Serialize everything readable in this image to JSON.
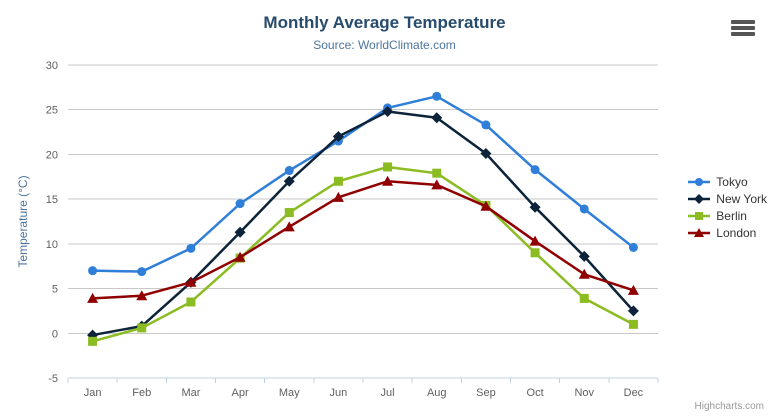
{
  "chart": {
    "title": "Monthly Average Temperature",
    "subtitle": "Source: WorldClimate.com",
    "credits": "Highcharts.com",
    "export_menu_icon": "hamburger-icon"
  },
  "chart_data": {
    "type": "line",
    "title": "Monthly Average Temperature",
    "subtitle": "Source: WorldClimate.com",
    "categories": [
      "Jan",
      "Feb",
      "Mar",
      "Apr",
      "May",
      "Jun",
      "Jul",
      "Aug",
      "Sep",
      "Oct",
      "Nov",
      "Dec"
    ],
    "series": [
      {
        "name": "Tokyo",
        "color": "#2f7ed8",
        "marker": "circle",
        "values": [
          7.0,
          6.9,
          9.5,
          14.5,
          18.2,
          21.5,
          25.2,
          26.5,
          23.3,
          18.3,
          13.9,
          9.6
        ]
      },
      {
        "name": "New York",
        "color": "#0d233a",
        "marker": "diamond",
        "values": [
          -0.2,
          0.8,
          5.7,
          11.3,
          17.0,
          22.0,
          24.8,
          24.1,
          20.1,
          14.1,
          8.6,
          2.5
        ]
      },
      {
        "name": "Berlin",
        "color": "#8bbc21",
        "marker": "square",
        "values": [
          -0.9,
          0.6,
          3.5,
          8.4,
          13.5,
          17.0,
          18.6,
          17.9,
          14.3,
          9.0,
          3.9,
          1.0
        ]
      },
      {
        "name": "London",
        "color": "#910000",
        "marker": "triangle",
        "values": [
          3.9,
          4.2,
          5.7,
          8.5,
          11.9,
          15.2,
          17.0,
          16.6,
          14.2,
          10.3,
          6.6,
          4.8
        ]
      }
    ],
    "xlabel": "",
    "ylabel": "Temperature (°C)",
    "ylim": [
      -5,
      30
    ],
    "yticks": [
      -5,
      0,
      5,
      10,
      15,
      20,
      25,
      30
    ],
    "grid": true,
    "legend_position": "right",
    "colors": {
      "grid_line": "#c8c8c8",
      "axis_line": "#c0d0e0",
      "axis_label": "#606060",
      "axis_title": "#4d759e",
      "legend_text": "#333333"
    }
  }
}
